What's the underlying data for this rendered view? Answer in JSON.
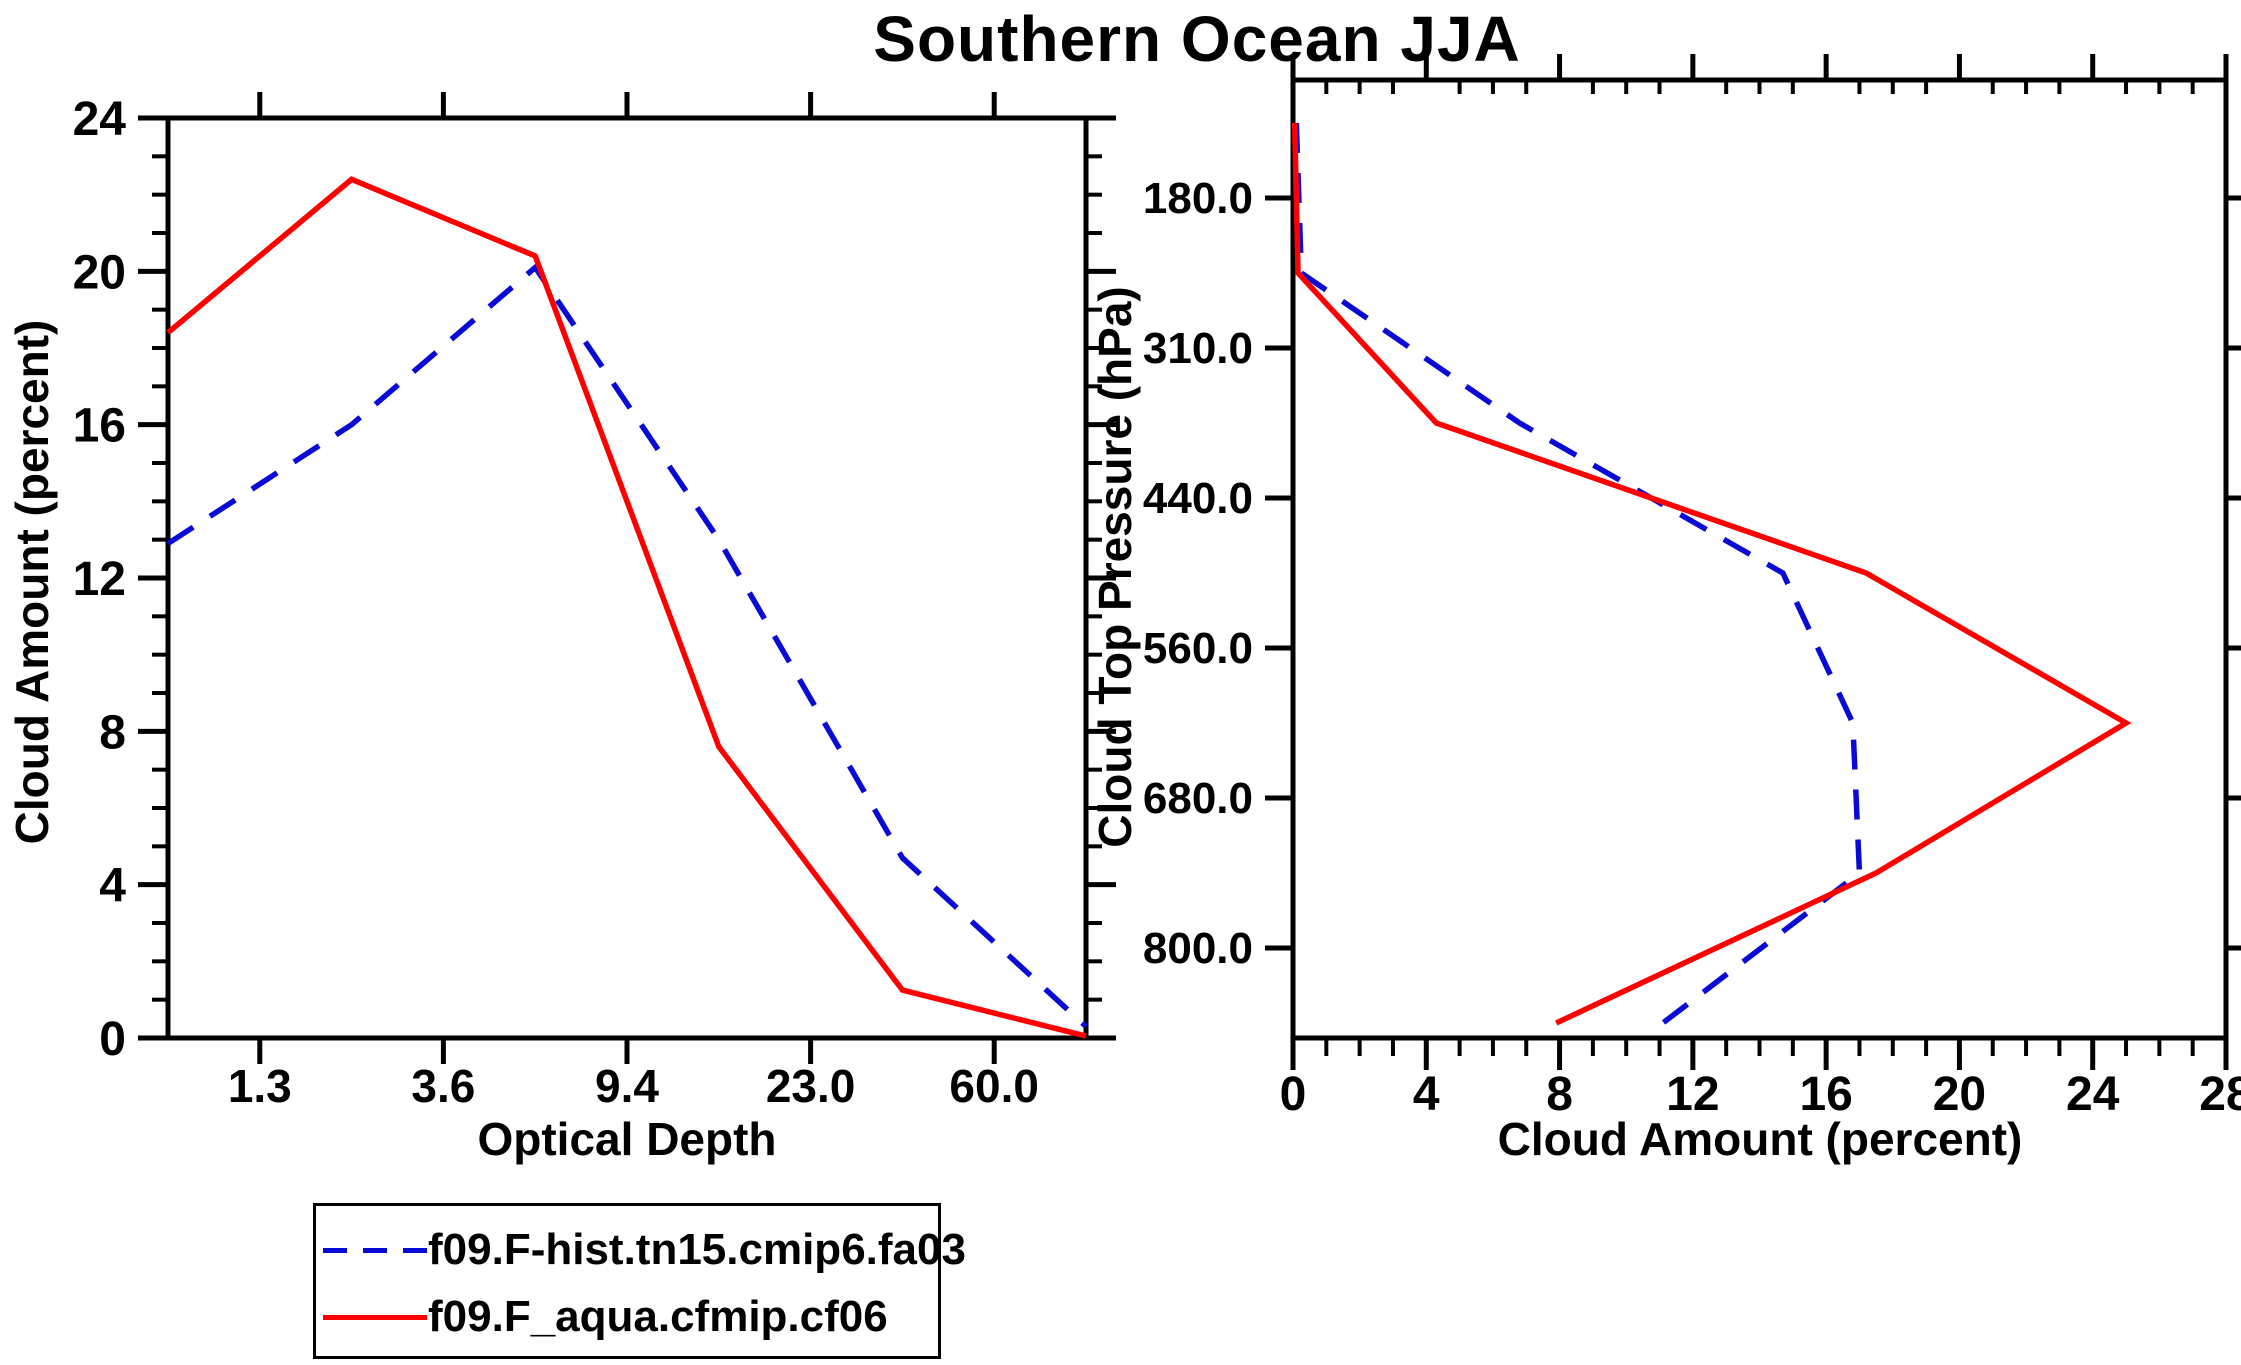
{
  "title": "Southern Ocean JJA",
  "colors": {
    "hist_blue": "#0a0ad7",
    "aqua_red": "#ff0000",
    "axis_black": "#000000"
  },
  "legend": {
    "items": [
      {
        "label": "f09.F-hist.tn15.cmip6.fa03",
        "color": "#0a0ad7",
        "style": "dashed"
      },
      {
        "label": "f09.F_aqua.cfmip.cf06",
        "color": "#ff0000",
        "style": "solid"
      }
    ]
  },
  "chart_data": [
    {
      "type": "line",
      "panel": "left",
      "xlabel": "Optical Depth",
      "ylabel": "Cloud Amount (percent)",
      "x_tick_labels": [
        "1.3",
        "3.6",
        "9.4",
        "23.0",
        "60.0"
      ],
      "x_note": "categorical optical-depth bin axis; data points at bin centers between boundary ticks",
      "tau_bin_centers": [
        0.65,
        2.45,
        6.5,
        16.2,
        41.5,
        220
      ],
      "y_major_ticks": [
        0,
        4,
        8,
        12,
        16,
        20,
        24
      ],
      "y_minor_step": 1,
      "ylim": [
        0,
        24
      ],
      "grid": false,
      "series": [
        {
          "name": "f09.F-hist.tn15.cmip6.fa03",
          "color": "#0a0ad7",
          "dashed": true,
          "values": [
            12.9,
            16.0,
            20.1,
            13.0,
            4.7,
            0.3
          ]
        },
        {
          "name": "f09.F_aqua.cfmip.cf06",
          "color": "#ff0000",
          "dashed": false,
          "values": [
            18.4,
            22.4,
            20.4,
            7.6,
            1.25,
            0.05
          ]
        }
      ]
    },
    {
      "type": "line",
      "panel": "right",
      "xlabel": "Cloud Amount (percent)",
      "ylabel": "Cloud Top Pressure (hPa)",
      "y_tick_labels": [
        "180.0",
        "310.0",
        "440.0",
        "560.0",
        "680.0",
        "800.0"
      ],
      "y_note": "categorical pressure bin axis (boundaries at ticks); data points at bin centers, pressure increases downward",
      "pressure_bin_centers": [
        115,
        245,
        375,
        500,
        620,
        740,
        900
      ],
      "x_major_ticks": [
        0,
        4,
        8,
        12,
        16,
        20,
        24,
        28
      ],
      "x_minor_step": 1,
      "xlim": [
        0,
        28
      ],
      "grid": false,
      "series": [
        {
          "name": "f09.F-hist.tn15.cmip6.fa03",
          "color": "#0a0ad7",
          "dashed": true,
          "values": [
            0.1,
            0.25,
            6.8,
            14.7,
            16.8,
            17.0,
            11.1
          ]
        },
        {
          "name": "f09.F_aqua.cfmip.cf06",
          "color": "#ff0000",
          "dashed": false,
          "values": [
            0.05,
            0.15,
            4.3,
            17.2,
            25.0,
            17.5,
            7.9
          ]
        }
      ]
    }
  ]
}
